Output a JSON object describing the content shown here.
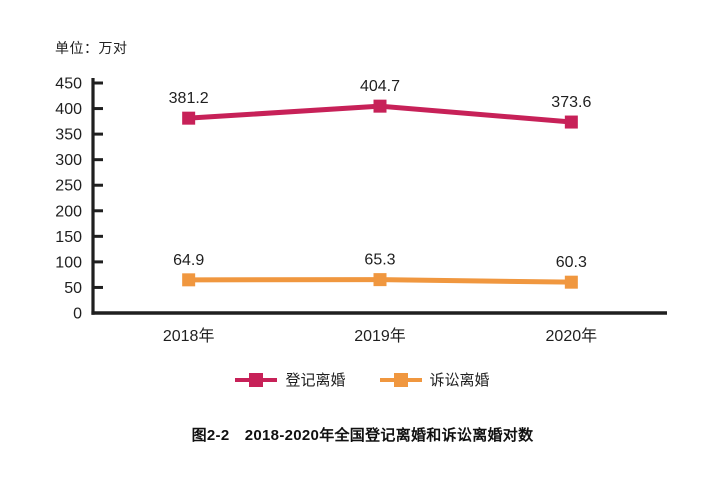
{
  "unit_label": "单位：万对",
  "caption": "图2-2　2018-2020年全国登记离婚和诉讼离婚对数",
  "colors": {
    "registered_divorce": "#C72158",
    "litigation_divorce": "#F0973F",
    "axis": "#1F1F1F",
    "text": "#1F1F1F"
  },
  "chart_data": {
    "type": "line",
    "title": "图2-2　2018-2020年全国登记离婚和诉讼离婚对数",
    "unit": "万对",
    "categories": [
      "2018年",
      "2019年",
      "2020年"
    ],
    "series": [
      {
        "name": "登记离婚",
        "values": [
          381.2,
          404.7,
          373.6
        ],
        "color": "#C72158"
      },
      {
        "name": "诉讼离婚",
        "values": [
          64.9,
          65.3,
          60.3
        ],
        "color": "#F0973F"
      }
    ],
    "ylim": [
      0,
      450
    ],
    "ytick_step": 50,
    "yticks": [
      0,
      50,
      100,
      150,
      200,
      250,
      300,
      350,
      400,
      450
    ],
    "marker": "square",
    "data_labels": true,
    "grid": false,
    "legend_position": "bottom"
  }
}
